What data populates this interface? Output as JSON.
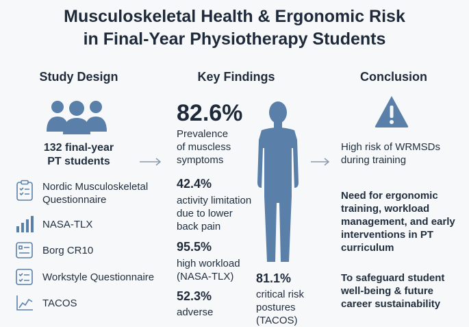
{
  "title": "Musculoskeletal Health & Ergonomic Risk\nin Final-Year Physiotherapy Students",
  "study_design": {
    "heading": "Study Design",
    "sample": "132 final-year\nPT students",
    "tools": [
      {
        "label": "Nordic Musculoskeletal\nQuestionnaire",
        "icon": "clipboard-checklist-icon"
      },
      {
        "label": "NASA-TLX",
        "icon": "bar-chart-icon"
      },
      {
        "label": "Borg CR10",
        "icon": "form-icon"
      },
      {
        "label": "Workstyle Questionnaire",
        "icon": "checklist-icon"
      },
      {
        "label": "TACOS",
        "icon": "line-chart-icon"
      }
    ]
  },
  "key_findings": {
    "heading": "Key Findings",
    "main_stat": "82.6%",
    "main_desc": "Prevalence\nof muscless\nsymptoms",
    "stats": [
      {
        "value": "42.4%",
        "desc": "activity limitation\ndue to lower\nback pain"
      },
      {
        "value": "95.5%",
        "desc": "high workload\n(NASA-TLX)"
      },
      {
        "value": "52.3%",
        "desc": "adverse"
      }
    ],
    "side_stat": {
      "value": "81.1%",
      "desc": "critical risk\npostures\n(TACOS)"
    }
  },
  "conclusion": {
    "heading": "Conclusion",
    "items": [
      "High risk of WRMSDs\nduring training",
      "Need for ergonomic\ntraining, workload\nmanagement, and early\ninterventions in PT\ncurriculum",
      "To safeguard student\nwell-being & future\ncareer sustainability"
    ]
  },
  "colors": {
    "accent": "#5a7fa8",
    "dark": "#1e2a3a",
    "background": "#f7f8fa"
  }
}
